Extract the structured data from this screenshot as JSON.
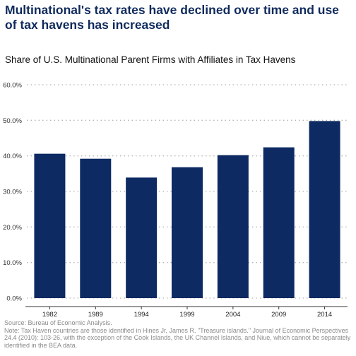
{
  "header": {
    "title": "Multinational's tax rates have declined over time and use of tax havens has increased"
  },
  "chart_data": {
    "type": "bar",
    "title": "Share of U.S. Multinational Parent Firms with Affiliates in Tax Havens",
    "xlabel": "",
    "ylabel": "",
    "categories": [
      "1982",
      "1989",
      "1994",
      "1999",
      "2004",
      "2009",
      "2014"
    ],
    "values": [
      40.6,
      39.2,
      33.9,
      36.8,
      40.2,
      42.4,
      49.8
    ],
    "value_format": "percent",
    "ylim": [
      0,
      60
    ],
    "yticks": [
      0,
      10,
      20,
      30,
      40,
      50,
      60
    ],
    "ytick_labels": [
      "0.0%",
      "10.0%",
      "20.0%",
      "30.0%",
      "40.0%",
      "50.0%",
      "60.0%"
    ],
    "grid": true,
    "bar_color": "#0d2a63"
  },
  "footer": {
    "source": "Source: Bureau of Economic Analysis.",
    "note": "Note: Tax Haven countries are those identified in Hines Jr, James R. \"Treasure islands.\" Journal of Economic Perspectives 24.4 (2010): 103-26, with the exception of the Cook Islands, the UK Channel Islands, and Niue, which cannot be separately identified in the BEA data."
  }
}
